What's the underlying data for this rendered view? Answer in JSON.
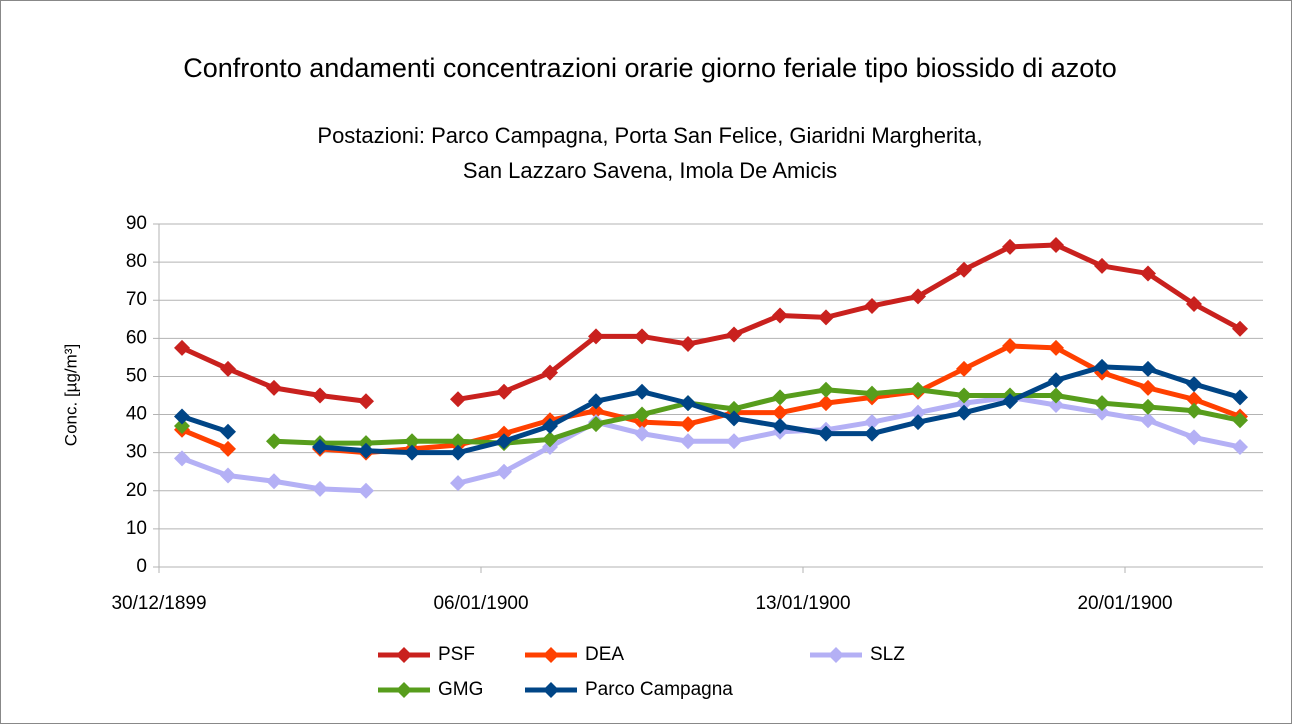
{
  "chart_data": {
    "type": "line",
    "title": "Confronto andamenti concentrazioni orarie giorno feriale tipo biossido di azoto",
    "subtitle": [
      "Postazioni: Parco Campagna, Porta San Felice, Giaridni Margherita,",
      "San Lazzaro Savena, Imola De Amicis"
    ],
    "y_label": "Conc. [µg/m³]",
    "categories": [
      "30/12/1899",
      null,
      null,
      null,
      null,
      null,
      null,
      "06/01/1900",
      null,
      null,
      null,
      null,
      null,
      null,
      "13/01/1900",
      null,
      null,
      null,
      null,
      null,
      null,
      "20/01/1900",
      null,
      null
    ],
    "ylim": [
      0,
      90
    ],
    "yticks": [
      0,
      10,
      20,
      30,
      40,
      50,
      60,
      70,
      80,
      90
    ],
    "grid": true,
    "series": [
      {
        "name": "PSF",
        "color": "#c9211e",
        "values": [
          57.5,
          52,
          47,
          45,
          43.5,
          null,
          44,
          46,
          51,
          60.5,
          60.5,
          58.5,
          61,
          66,
          65.5,
          68.5,
          71,
          78,
          84,
          84.5,
          79,
          77,
          69,
          62.5
        ]
      },
      {
        "name": "DEA",
        "color": "#ff4000",
        "values": [
          36,
          31,
          null,
          31,
          30,
          31,
          32,
          35,
          38.5,
          41,
          38,
          37.5,
          40.5,
          40.5,
          43,
          44.5,
          46,
          52,
          58,
          57.5,
          51,
          47,
          44,
          39.5
        ]
      },
      {
        "name": "SLZ",
        "color": "#b4b0f5",
        "values": [
          28.5,
          24,
          22.5,
          20.5,
          20,
          null,
          22,
          25,
          31.5,
          38,
          35,
          33,
          33,
          35.5,
          36,
          38,
          40.5,
          43,
          44.5,
          42.5,
          40.5,
          38.5,
          34,
          31.5
        ]
      },
      {
        "name": "GMG",
        "color": "#579d1c",
        "values": [
          37,
          null,
          33,
          32.5,
          32.5,
          33,
          33,
          32.5,
          33.5,
          37.5,
          40,
          43,
          41.5,
          44.5,
          46.5,
          45.5,
          46.5,
          45,
          45,
          45,
          43,
          42,
          41,
          38.5
        ]
      },
      {
        "name": "Parco Campagna",
        "color": "#004586",
        "values": [
          39.5,
          35.5,
          null,
          31.5,
          30.5,
          30,
          30,
          33,
          37,
          43.5,
          46,
          43,
          39,
          37,
          35,
          35,
          38,
          40.5,
          43.5,
          49,
          52.5,
          52,
          48,
          44.5
        ]
      }
    ]
  }
}
